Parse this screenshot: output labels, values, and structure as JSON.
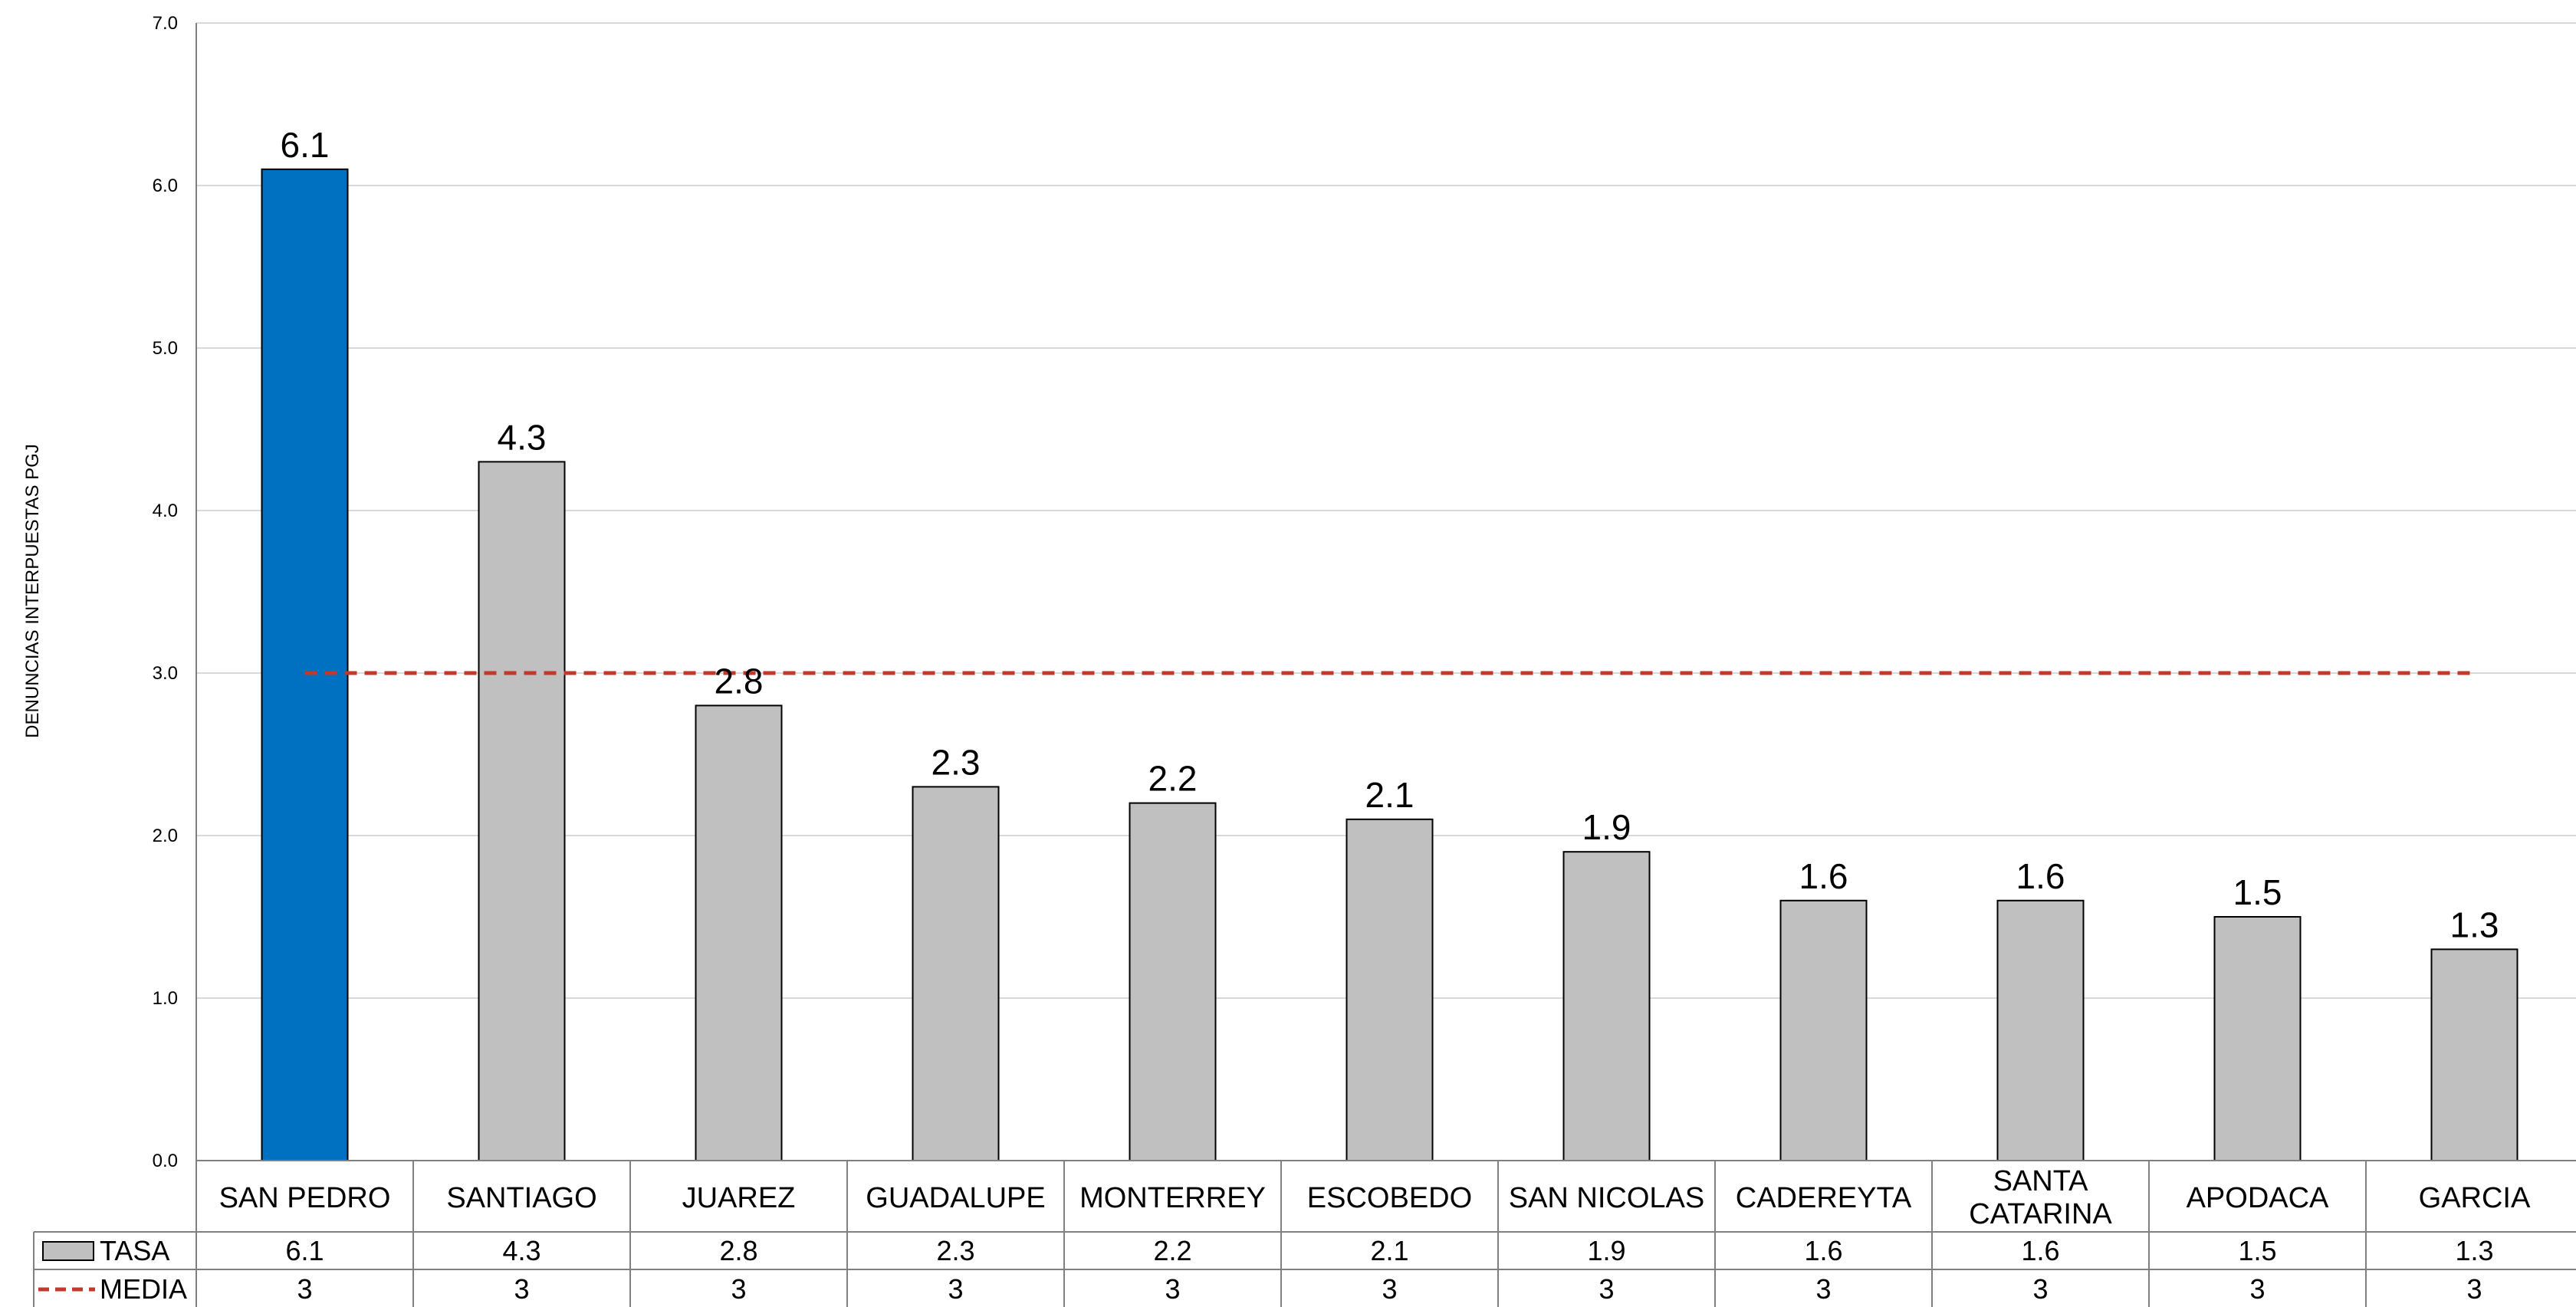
{
  "chart_data": {
    "type": "bar",
    "title": "",
    "xlabel": "",
    "ylabel": "DENUNCIAS INTERPUESTAS PGJ",
    "ylim": [
      0,
      7
    ],
    "yticks": [
      "0.0",
      "1.0",
      "2.0",
      "3.0",
      "4.0",
      "5.0",
      "6.0",
      "7.0"
    ],
    "grid": true,
    "categories": [
      "SAN PEDRO",
      "SANTIAGO",
      "JUAREZ",
      "GUADALUPE",
      "MONTERREY",
      "ESCOBEDO",
      "SAN NICOLAS",
      "CADEREYTA",
      "SANTA CATARINA",
      "APODACA",
      "GARCIA"
    ],
    "category_lines": [
      [
        "SAN PEDRO"
      ],
      [
        "SANTIAGO"
      ],
      [
        "JUAREZ"
      ],
      [
        "GUADALUPE"
      ],
      [
        "MONTERREY"
      ],
      [
        "ESCOBEDO"
      ],
      [
        "SAN NICOLAS"
      ],
      [
        "CADEREYTA"
      ],
      [
        "SANTA",
        "CATARINA"
      ],
      [
        "APODACA"
      ],
      [
        "GARCIA"
      ]
    ],
    "series": [
      {
        "name": "TASA",
        "kind": "bar",
        "color": "#c0c0c0",
        "highlight_color": "#0070c0",
        "highlight_index": 0,
        "values": [
          6.1,
          4.3,
          2.8,
          2.3,
          2.2,
          2.1,
          1.9,
          1.6,
          1.6,
          1.5,
          1.3
        ],
        "value_labels": [
          "6.1",
          "4.3",
          "2.8",
          "2.3",
          "2.2",
          "2.1",
          "1.9",
          "1.6",
          "1.6",
          "1.5",
          "1.3"
        ]
      },
      {
        "name": "MEDIA",
        "kind": "line",
        "style": "dashed",
        "color": "#c0392b",
        "values": [
          3,
          3,
          3,
          3,
          3,
          3,
          3,
          3,
          3,
          3,
          3
        ],
        "value_labels": [
          "3",
          "3",
          "3",
          "3",
          "3",
          "3",
          "3",
          "3",
          "3",
          "3",
          "3"
        ]
      }
    ],
    "legend": "data-table-below"
  }
}
